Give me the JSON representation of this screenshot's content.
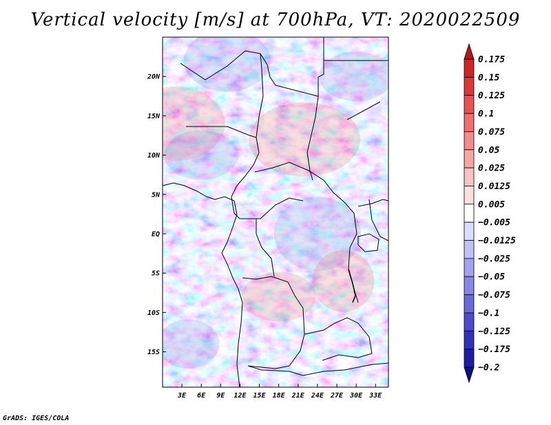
{
  "title": "Vertical velocity [m/s] at 700hPa, VT: 2020022509",
  "credit": "GrADS: IGES/COLA",
  "map": {
    "lat_labels": [
      "20N",
      "15N",
      "10N",
      "5N",
      "EQ",
      "5S",
      "10S",
      "15S"
    ],
    "lon_labels": [
      "3E",
      "6E",
      "9E",
      "12E",
      "15E",
      "18E",
      "21E",
      "24E",
      "27E",
      "30E",
      "33E"
    ],
    "lat_values": [
      20,
      15,
      10,
      5,
      0,
      -5,
      -10,
      -15
    ],
    "lon_values": [
      3,
      6,
      9,
      12,
      15,
      18,
      21,
      24,
      27,
      30,
      33
    ],
    "lon_range": [
      0,
      35
    ],
    "lat_range": [
      -19.5,
      25
    ]
  },
  "colorbar": {
    "labels": [
      "0.175",
      "0.15",
      "0.125",
      "0.1",
      "0.075",
      "0.05",
      "0.025",
      "0.0125",
      "0.005",
      "−0.005",
      "−0.0125",
      "−0.025",
      "−0.05",
      "−0.075",
      "−0.1",
      "−0.125",
      "−0.175",
      "−0.2"
    ],
    "colors": [
      "#b01c1c",
      "#c82828",
      "#d83a3a",
      "#e45454",
      "#ec7070",
      "#f08c8c",
      "#f4a8a8",
      "#f8c4c4",
      "#fce0e0",
      "#ffffff",
      "#dcdcfc",
      "#c0c0f4",
      "#a4a4ec",
      "#8888e4",
      "#6a6ad8",
      "#4c4cc8",
      "#3232b4",
      "#1e1e9c",
      "#10107e"
    ]
  },
  "colors": {
    "background": "#ffffff",
    "border": "#000000",
    "positive": "#e45454",
    "negative": "#6a6ad8"
  }
}
